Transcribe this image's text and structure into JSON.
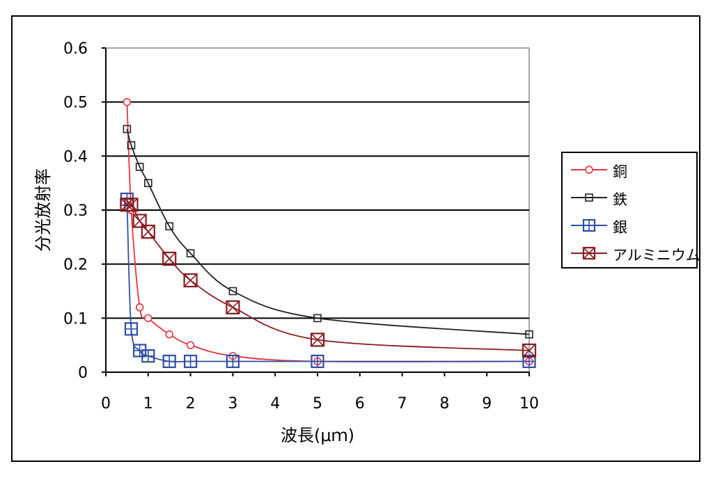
{
  "chart_data": {
    "type": "line",
    "xlabel": "波長(μｍ)",
    "ylabel": "分光放射率",
    "xlim": [
      0,
      10
    ],
    "ylim": [
      0,
      0.6
    ],
    "xticks": [
      "0",
      "1",
      "2",
      "3",
      "4",
      "5",
      "6",
      "7",
      "8",
      "9",
      "10"
    ],
    "yticks": [
      "0",
      "0.1",
      "0.2",
      "0.3",
      "0.4",
      "0.5",
      "0.6"
    ],
    "grid": "horizontal",
    "legend_position": "right",
    "series": [
      {
        "name": "銅",
        "color": "#e8323c",
        "marker": "circle",
        "x": [
          0.5,
          0.6,
          0.8,
          1.0,
          1.5,
          2.0,
          3.0,
          5.0,
          10.0
        ],
        "y": [
          0.5,
          0.3,
          0.12,
          0.1,
          0.07,
          0.05,
          0.03,
          0.02,
          0.02
        ]
      },
      {
        "name": "鉄",
        "color": "#222222",
        "marker": "square",
        "x": [
          0.5,
          0.6,
          0.8,
          1.0,
          1.5,
          2.0,
          3.0,
          5.0,
          10.0
        ],
        "y": [
          0.45,
          0.42,
          0.38,
          0.35,
          0.27,
          0.22,
          0.15,
          0.1,
          0.07
        ]
      },
      {
        "name": "銀",
        "color": "#2e4ea6",
        "marker": "square-plus",
        "x": [
          0.5,
          0.6,
          0.8,
          1.0,
          1.5,
          2.0,
          3.0,
          5.0,
          10.0
        ],
        "y": [
          0.32,
          0.08,
          0.04,
          0.03,
          0.02,
          0.02,
          0.02,
          0.02,
          0.02
        ]
      },
      {
        "name": "アルミニウム",
        "color": "#8b1a1f",
        "marker": "square-x",
        "x": [
          0.5,
          0.6,
          0.8,
          1.0,
          1.5,
          2.0,
          3.0,
          5.0,
          10.0
        ],
        "y": [
          0.31,
          0.31,
          0.28,
          0.26,
          0.21,
          0.17,
          0.12,
          0.06,
          0.04
        ]
      }
    ]
  }
}
